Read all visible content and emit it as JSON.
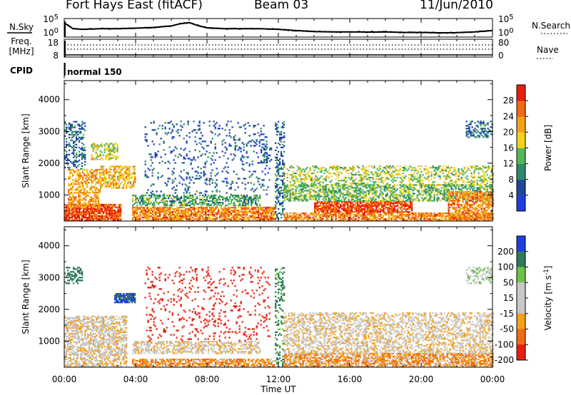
{
  "header": {
    "station": "Fort Hays East (fitACF)",
    "beam": "Beam 03",
    "date": "11/Jun/2010"
  },
  "aux_panels": {
    "nsky_label": "N.Sky",
    "nsearch_label": "N.Search",
    "noise_ticks_left": [
      "10^5",
      "10^0"
    ],
    "noise_ticks_right": [
      "10^5",
      "10^0"
    ],
    "freq_label_line1": "Freq.",
    "freq_label_line2": "[MHz]",
    "freq_ticks": [
      "18",
      "8"
    ],
    "nave_label": "Nave",
    "nave_ticks": [
      "80",
      "0"
    ],
    "cpid_label": "CPID",
    "cpid_value": "normal 150"
  },
  "colors": {
    "background": "#ffffff",
    "power_scale": [
      "#1f3fe0",
      "#22469a",
      "#2f8a6a",
      "#52b85a",
      "#f2d21a",
      "#f7a11a",
      "#f06a14",
      "#e81e0f"
    ],
    "velocity_scale": [
      "#1f3fe0",
      "#2f7a58",
      "#6ec24a",
      "#c8c8c8",
      "#c8c8c8",
      "#f7a11a",
      "#f06a14",
      "#e81e0f"
    ]
  },
  "chart_data": [
    {
      "type": "line",
      "title": "N.Sky",
      "x_ticks": [
        "00:00",
        "04:00",
        "08:00",
        "12:00",
        "16:00",
        "20:00",
        "00:00"
      ],
      "y_ticks": [
        "10^5",
        "10^0"
      ],
      "series": [
        {
          "name": "N.Sky",
          "x": [
            0,
            0.1,
            0.5,
            1,
            2,
            3,
            4,
            5,
            6,
            6.5,
            7,
            7.5,
            8,
            9,
            10,
            11,
            12,
            13,
            14,
            15,
            16,
            17,
            18,
            19,
            20,
            21,
            22,
            23,
            24
          ],
          "y": [
            0.75,
            0.7,
            0.45,
            0.42,
            0.45,
            0.45,
            0.48,
            0.52,
            0.6,
            0.72,
            0.78,
            0.62,
            0.5,
            0.45,
            0.45,
            0.45,
            0.42,
            0.35,
            0.3,
            0.28,
            0.28,
            0.27,
            0.28,
            0.25,
            0.25,
            0.23,
            0.24,
            0.28,
            0.35
          ]
        }
      ]
    },
    {
      "type": "heatmap",
      "title": "",
      "xlabel": "",
      "ylabel": "Slant Range [km]",
      "x_ticks": [
        "00:00",
        "04:00",
        "08:00",
        "12:00",
        "16:00",
        "20:00",
        "00:00"
      ],
      "xlim": [
        0,
        24
      ],
      "y_ticks": [
        1000,
        2000,
        3000,
        4000
      ],
      "ylim": [
        180,
        4600
      ],
      "colorbar": {
        "label": "Power [dB]",
        "range": [
          0,
          32
        ],
        "ticks": [
          4,
          8,
          12,
          16,
          20,
          24,
          28
        ]
      },
      "echo_regions": [
        {
          "t0": 0.0,
          "t1": 3.2,
          "r0": 180,
          "r1": 700,
          "power_db": 28,
          "density": 0.85
        },
        {
          "t0": 0.2,
          "t1": 2.0,
          "r0": 600,
          "r1": 1800,
          "power_db": 22,
          "density": 0.55
        },
        {
          "t0": 2.0,
          "t1": 4.0,
          "r0": 1200,
          "r1": 1900,
          "power_db": 20,
          "density": 0.6
        },
        {
          "t0": 0.0,
          "t1": 1.2,
          "r0": 1800,
          "r1": 3300,
          "power_db": 8,
          "density": 0.35
        },
        {
          "t0": 1.5,
          "t1": 3.0,
          "r0": 2100,
          "r1": 2600,
          "power_db": 16,
          "density": 0.45
        },
        {
          "t0": 3.8,
          "t1": 11.8,
          "r0": 180,
          "r1": 600,
          "power_db": 24,
          "density": 0.75
        },
        {
          "t0": 3.8,
          "t1": 11.0,
          "r0": 650,
          "r1": 1000,
          "power_db": 12,
          "density": 0.55
        },
        {
          "t0": 4.5,
          "t1": 11.5,
          "r0": 1000,
          "r1": 3300,
          "power_db": 6,
          "density": 0.12
        },
        {
          "t0": 11.0,
          "t1": 11.6,
          "r0": 2000,
          "r1": 2500,
          "power_db": 8,
          "density": 0.35
        },
        {
          "t0": 11.8,
          "t1": 12.3,
          "r0": 180,
          "r1": 3300,
          "power_db": 8,
          "density": 0.35
        },
        {
          "t0": 12.3,
          "t1": 24.0,
          "r0": 180,
          "r1": 450,
          "power_db": 24,
          "density": 0.7
        },
        {
          "t0": 14.0,
          "t1": 19.5,
          "r0": 450,
          "r1": 800,
          "power_db": 28,
          "density": 0.8
        },
        {
          "t0": 12.3,
          "t1": 24.0,
          "r0": 800,
          "r1": 1300,
          "power_db": 14,
          "density": 0.55
        },
        {
          "t0": 12.3,
          "t1": 24.0,
          "r0": 1300,
          "r1": 1900,
          "power_db": 16,
          "density": 0.35
        },
        {
          "t0": 21.5,
          "t1": 24.0,
          "r0": 180,
          "r1": 1100,
          "power_db": 24,
          "density": 0.65
        },
        {
          "t0": 22.5,
          "t1": 24.0,
          "r0": 2800,
          "r1": 3300,
          "power_db": 8,
          "density": 0.4
        }
      ]
    },
    {
      "type": "heatmap",
      "title": "",
      "xlabel": "Time UT",
      "ylabel": "Slant Range [km]",
      "x_ticks": [
        "00:00",
        "04:00",
        "08:00",
        "12:00",
        "16:00",
        "20:00",
        "00:00"
      ],
      "xlim": [
        0,
        24
      ],
      "y_ticks": [
        1000,
        2000,
        3000,
        4000
      ],
      "ylim": [
        180,
        4600
      ],
      "colorbar": {
        "label": "Velocity [m s^-1]",
        "range": [
          -250,
          250
        ],
        "ticks": [
          200,
          100,
          50,
          15,
          -15,
          -50,
          -100,
          -200
        ]
      },
      "echo_regions": [
        {
          "t0": 0.0,
          "t1": 3.5,
          "r0": 180,
          "r1": 1800,
          "velocity": 0,
          "density": 0.6
        },
        {
          "t0": 2.8,
          "t1": 4.0,
          "r0": 2200,
          "r1": 2500,
          "velocity": 210,
          "density": 0.8
        },
        {
          "t0": 0.0,
          "t1": 1.0,
          "r0": 2800,
          "r1": 3300,
          "velocity": 150,
          "density": 0.45
        },
        {
          "t0": 3.8,
          "t1": 11.8,
          "r0": 180,
          "r1": 450,
          "velocity": -40,
          "density": 0.7
        },
        {
          "t0": 3.8,
          "t1": 11.0,
          "r0": 600,
          "r1": 1000,
          "velocity": 0,
          "density": 0.5
        },
        {
          "t0": 4.5,
          "t1": 11.5,
          "r0": 1000,
          "r1": 3300,
          "velocity": -150,
          "density": 0.1
        },
        {
          "t0": 11.8,
          "t1": 12.3,
          "r0": 180,
          "r1": 3300,
          "velocity": 120,
          "density": 0.3
        },
        {
          "t0": 12.3,
          "t1": 24.0,
          "r0": 180,
          "r1": 600,
          "velocity": -40,
          "density": 0.7
        },
        {
          "t0": 12.3,
          "t1": 24.0,
          "r0": 600,
          "r1": 1900,
          "velocity": 0,
          "density": 0.45
        },
        {
          "t0": 22.5,
          "t1": 24.0,
          "r0": 2800,
          "r1": 3300,
          "velocity": 40,
          "density": 0.4
        }
      ]
    }
  ]
}
